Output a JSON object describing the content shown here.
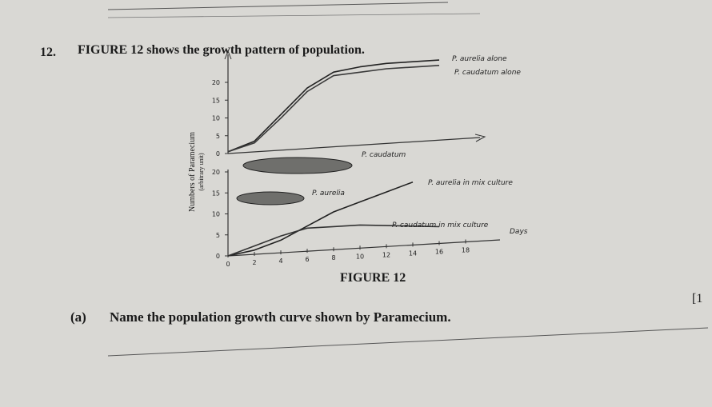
{
  "question": {
    "number": "12.",
    "text": "FIGURE 12 shows the growth pattern of population."
  },
  "figure": {
    "caption": "FIGURE 12",
    "y_label": "Numbers of Paramecium",
    "y_unit": "(arbitrary unit)",
    "x_label": "Days",
    "top_panel": {
      "yticks": [
        0,
        5,
        10,
        15,
        20
      ],
      "x": [
        0,
        2,
        4,
        6,
        8,
        10,
        12,
        14,
        16
      ],
      "series": [
        {
          "name": "P. aurelia alone",
          "values": [
            0.5,
            3,
            10,
            17,
            21,
            22,
            22.5,
            22.5,
            22.5
          ]
        },
        {
          "name": "P. caudatum alone",
          "values": [
            0.5,
            2.5,
            9,
            16,
            20,
            20.5,
            21,
            21,
            21
          ]
        }
      ]
    },
    "bottom_panel": {
      "yticks": [
        0,
        5,
        10,
        15,
        20
      ],
      "xticks": [
        0,
        2,
        4,
        6,
        8,
        10,
        12,
        14,
        16,
        18
      ],
      "x": [
        0,
        2,
        4,
        6,
        8,
        10,
        12,
        14,
        16
      ],
      "series": [
        {
          "name": "P. aurelia in mix culture",
          "values": [
            0,
            1,
            3,
            6,
            9,
            11,
            13,
            15,
            null
          ]
        },
        {
          "name": "P. caudatum in mix culture",
          "values": [
            0,
            2,
            4,
            5.5,
            5.5,
            5.5,
            5,
            4.5,
            4
          ]
        }
      ],
      "image_labels": [
        "P. caudatum",
        "P. aurelia"
      ]
    }
  },
  "part_a": {
    "label": "(a)",
    "text": "Name the population growth curve shown by Paramecium.",
    "marks": "[1"
  }
}
